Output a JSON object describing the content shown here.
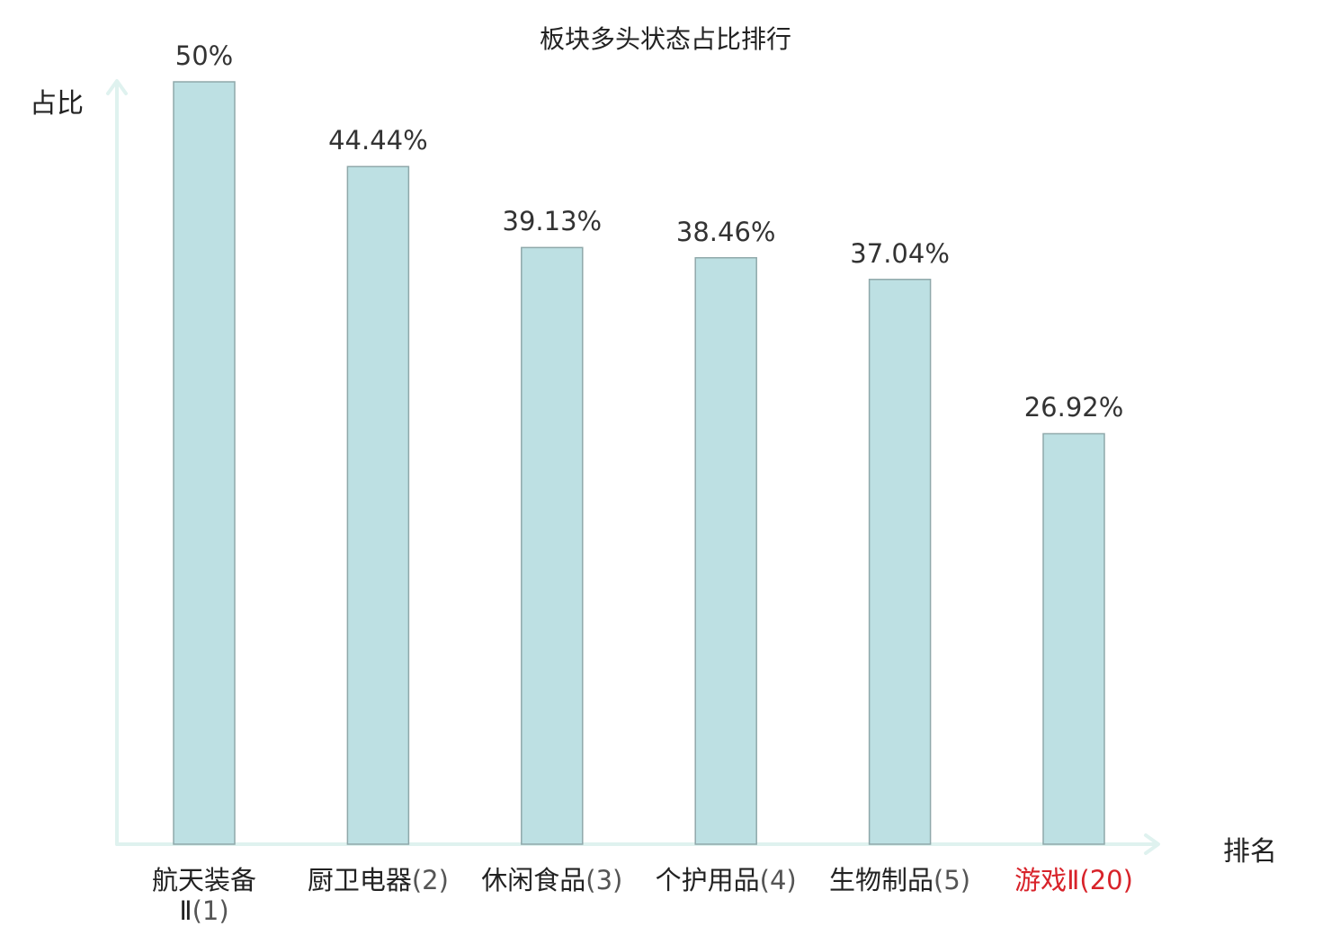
{
  "chart_data": {
    "type": "bar",
    "title": "板块多头状态占比排行",
    "ylabel": "占比",
    "xlabel": "排名",
    "ylim": [
      0,
      50
    ],
    "categories": [
      {
        "name": "航天装备Ⅱ",
        "rank": "(1)",
        "highlight": false
      },
      {
        "name": "厨卫电器",
        "rank": "(2)",
        "highlight": false
      },
      {
        "name": "休闲食品",
        "rank": "(3)",
        "highlight": false
      },
      {
        "name": "个护用品",
        "rank": "(4)",
        "highlight": false
      },
      {
        "name": "生物制品",
        "rank": "(5)",
        "highlight": false
      },
      {
        "name": "游戏Ⅱ",
        "rank": "(20)",
        "highlight": true
      }
    ],
    "values": [
      50,
      44.44,
      39.13,
      38.46,
      37.04,
      26.92
    ],
    "value_labels": [
      "50%",
      "44.44%",
      "39.13%",
      "38.46%",
      "37.04%",
      "26.92%"
    ],
    "grid": false,
    "colors": {
      "bar_fill": "#bde0e3",
      "bar_stroke": "#8fa8aa",
      "axis": "#dff2ef",
      "highlight": "#d8232a"
    }
  }
}
